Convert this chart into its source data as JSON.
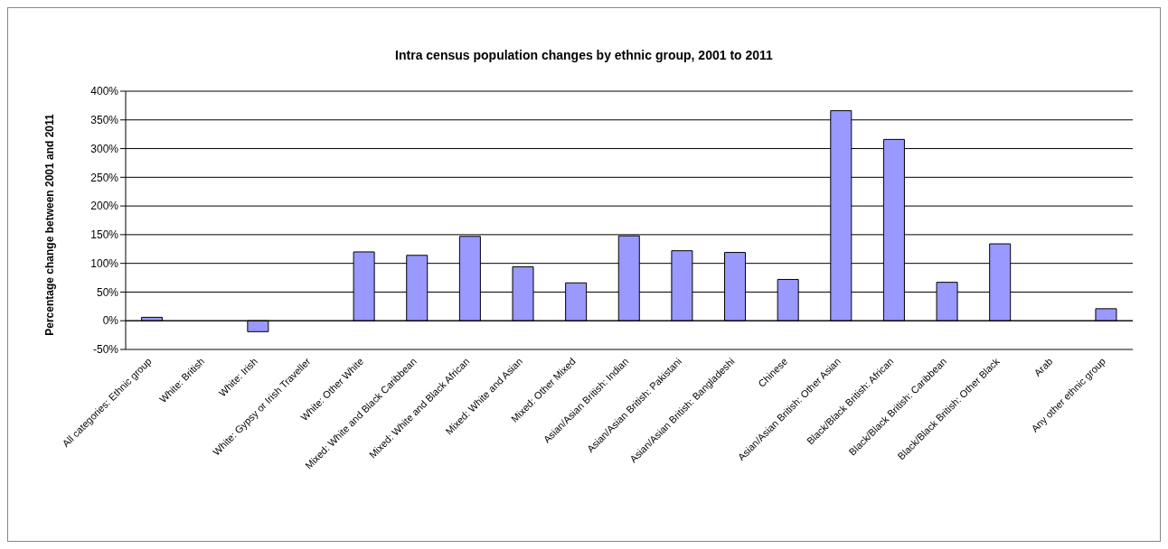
{
  "chart_data": {
    "type": "bar",
    "title": "Intra census population changes by ethnic group, 2001 to 2011",
    "ylabel": "Percentage change between 2001 and 2011",
    "categories": [
      "All categories: Ethnic group",
      "White: British",
      "White: Irish",
      "White: Gypsy or Irish Traveller",
      "White: Other White",
      "Mixed: White and Black Caribbean",
      "Mixed: White and Black African",
      "Mixed: White and Asian",
      "Mixed: Other Mixed",
      "Asian/Asian British: Indian",
      "Asian/Asian British: Pakistani",
      "Asian/Asian British: Bangladeshi",
      "Chinese",
      "Asian/Asian British: Other Asian",
      "Black/Black British: African",
      "Black/Black British: Caribbean",
      "Black/Black British: Other Black",
      "Arab",
      "Any other ethnic group"
    ],
    "values": [
      6,
      null,
      -19,
      null,
      120,
      114,
      147,
      94,
      66,
      148,
      122,
      119,
      72,
      366,
      316,
      67,
      134,
      null,
      21
    ],
    "color": "#9999ff",
    "ylim": [
      -50,
      400
    ],
    "yticks": [
      {
        "value": -50,
        "label": "-50%"
      },
      {
        "value": 0,
        "label": "0%"
      },
      {
        "value": 50,
        "label": "50%"
      },
      {
        "value": 100,
        "label": "100%"
      },
      {
        "value": 150,
        "label": "150%"
      },
      {
        "value": 200,
        "label": "200%"
      },
      {
        "value": 250,
        "label": "250%"
      },
      {
        "value": 300,
        "label": "300%"
      },
      {
        "value": 350,
        "label": "350%"
      },
      {
        "value": 400,
        "label": "400%"
      }
    ],
    "grid": "y",
    "legend": false
  }
}
